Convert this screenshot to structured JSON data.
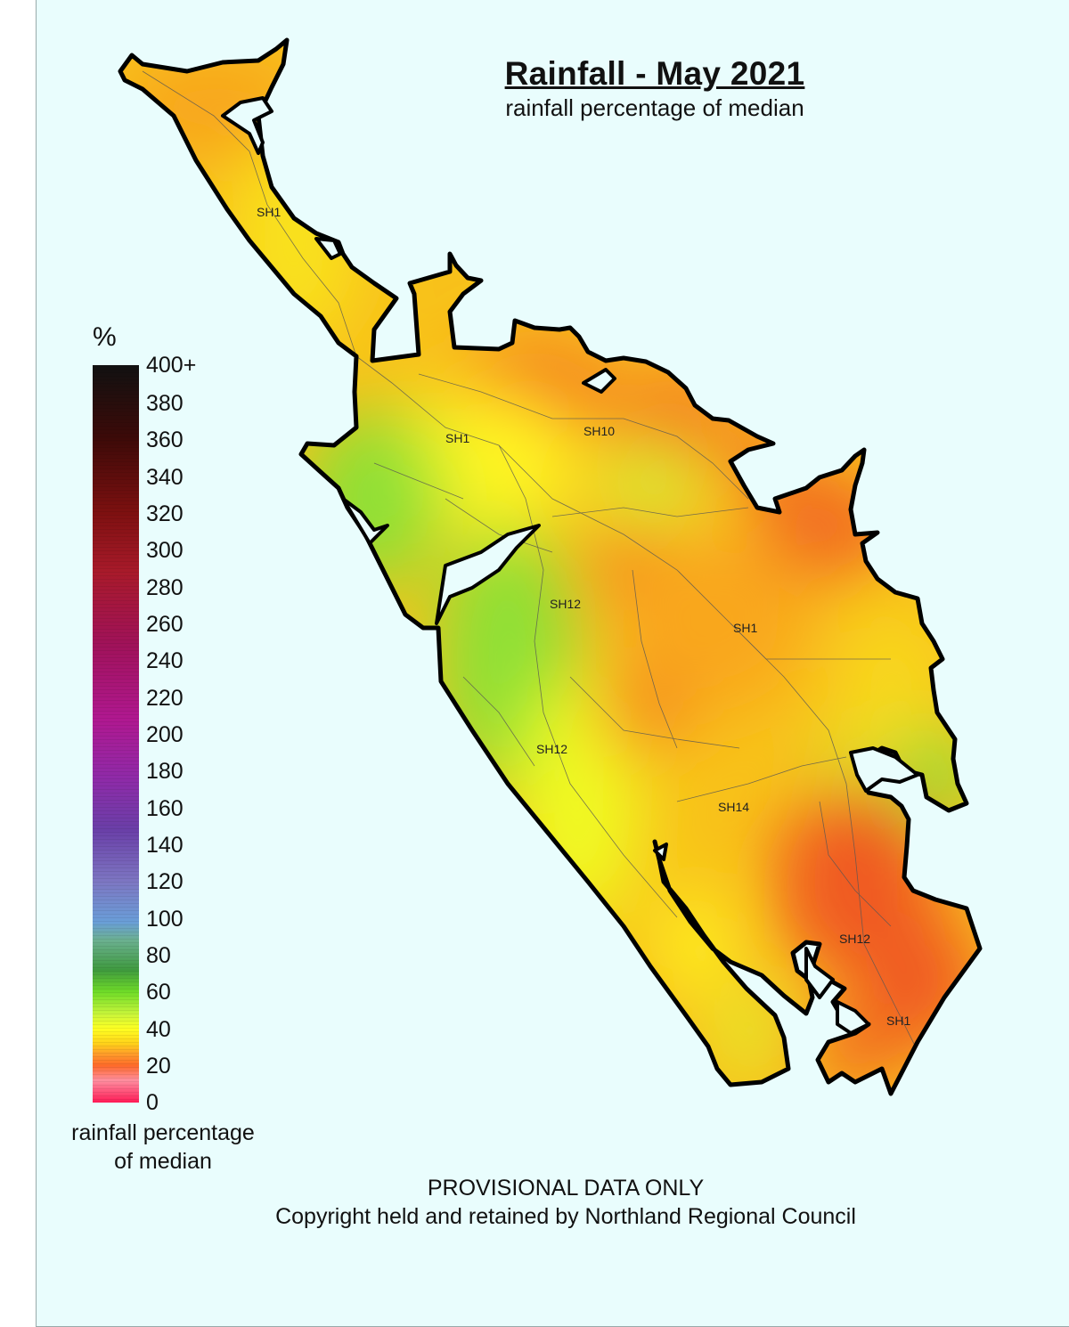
{
  "map": {
    "title": "Rainfall - May 2021",
    "subtitle": "rainfall percentage of median",
    "footer_line1": "PROVISIONAL DATA ONLY",
    "footer_line2": "Copyright held and retained by Northland Regional Council",
    "road_labels": [
      "SH1",
      "SH1",
      "SH10",
      "SH12",
      "SH1",
      "SH12",
      "SH14",
      "SH12",
      "SH1"
    ]
  },
  "legend": {
    "unit": "%",
    "ticks": [
      "400+",
      "380",
      "360",
      "340",
      "320",
      "300",
      "280",
      "260",
      "240",
      "220",
      "200",
      "180",
      "160",
      "140",
      "120",
      "100",
      "80",
      "60",
      "40",
      "20",
      "0"
    ],
    "caption_line1": "rainfall percentage",
    "caption_line2": "of median",
    "range": [
      0,
      400
    ],
    "colors": {
      "0": "#ff1a55",
      "40": "#ff7a22",
      "60": "#ffff22",
      "80": "#6fdc28",
      "100": "#4a8a4a",
      "120": "#7090d0",
      "200": "#8f2aa8",
      "300": "#a81a2a",
      "400": "#111111"
    }
  }
}
